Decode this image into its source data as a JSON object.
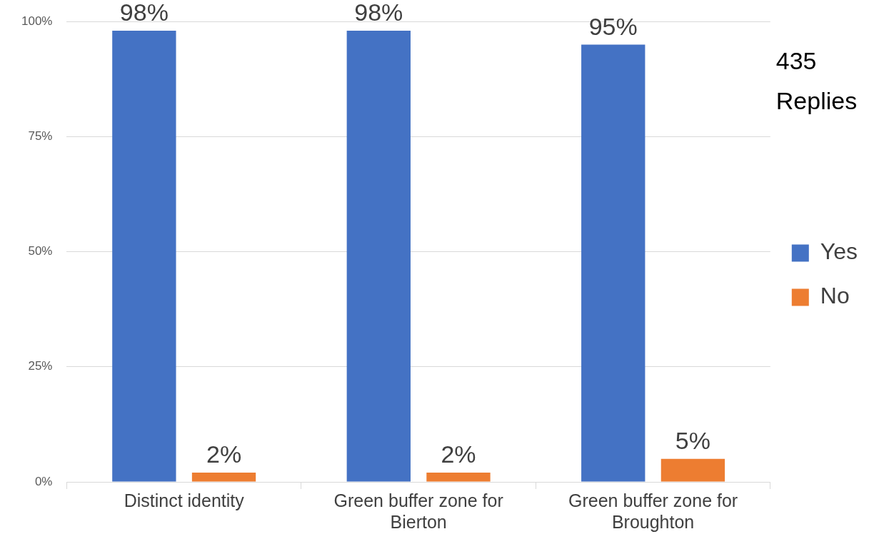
{
  "chart_data": {
    "type": "bar",
    "categories": [
      "Distinct identity",
      "Green buffer zone for Bierton",
      "Green buffer zone for Broughton"
    ],
    "series": [
      {
        "name": "Yes",
        "color": "#4472c4",
        "values": [
          98,
          98,
          95
        ],
        "value_labels": [
          "98%",
          "98%",
          "95%"
        ]
      },
      {
        "name": "No",
        "color": "#ed7d31",
        "values": [
          2,
          2,
          5
        ],
        "value_labels": [
          "2%",
          "2%",
          "5%"
        ]
      }
    ],
    "ylim": [
      0,
      100
    ],
    "yticks": [
      {
        "value": 0,
        "label": "0%"
      },
      {
        "value": 25,
        "label": "25%"
      },
      {
        "value": 50,
        "label": "50%"
      },
      {
        "value": 75,
        "label": "75%"
      },
      {
        "value": 100,
        "label": "100%"
      }
    ],
    "grid": "y",
    "legend": "right",
    "annotations": [
      "435 Replies"
    ]
  }
}
